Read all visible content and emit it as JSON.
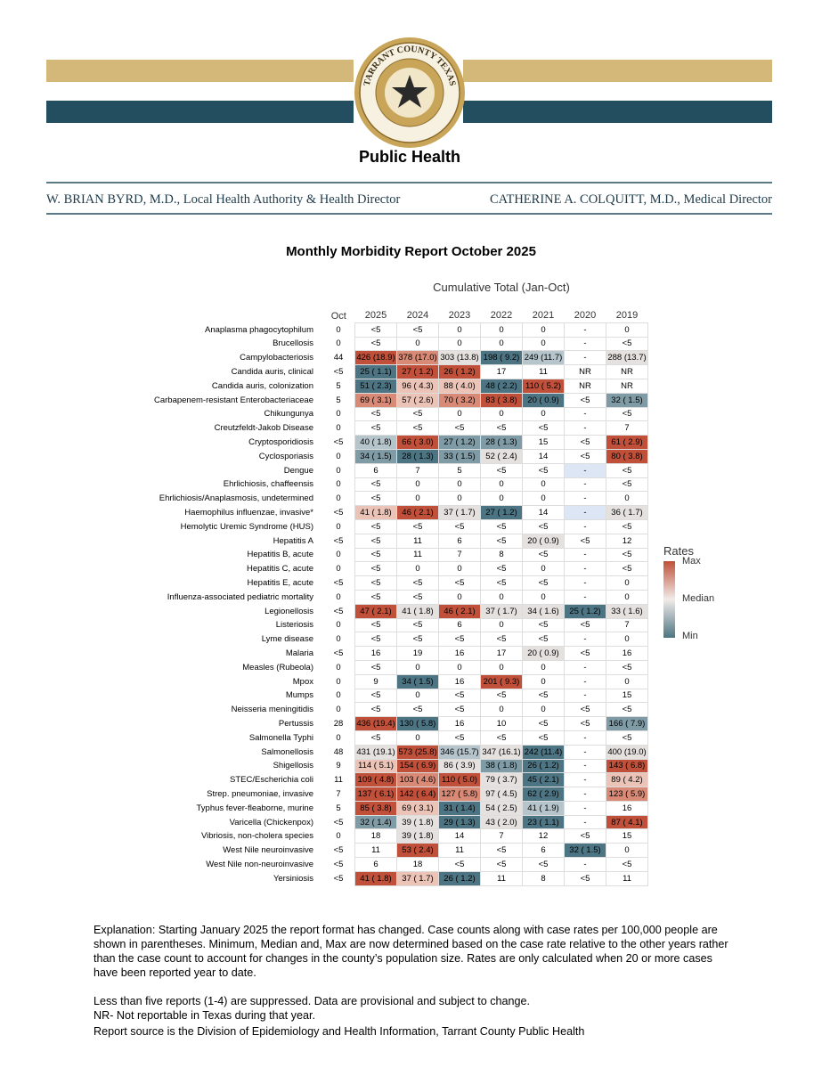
{
  "header": {
    "seal_text": "TARRANT COUNTY TEXAS",
    "organization": "Public Health",
    "left": "W. BRIAN BYRD, M.D., Local Health Authority & Health Director",
    "right": "CATHERINE A. COLQUITT, M.D., Medical Director"
  },
  "title": "Monthly Morbidity Report October 2025",
  "table": {
    "group_header": "Cumulative Total (Jan-Oct)",
    "columns": [
      "Oct",
      "2025",
      "2024",
      "2023",
      "2022",
      "2021",
      "2020",
      "2019"
    ],
    "rows": [
      {
        "name": "Anaplasma phagocytophilum",
        "values": [
          "0",
          "<5",
          "<5",
          "0",
          "0",
          "0",
          "-",
          "0"
        ]
      },
      {
        "name": "Brucellosis",
        "values": [
          "0",
          "<5",
          "0",
          "0",
          "0",
          "0",
          "-",
          "<5"
        ]
      },
      {
        "name": "Campylobacteriosis",
        "values": [
          "44",
          "426 (18.9)",
          "378 (17.0)",
          "303 (13.8)",
          "198 ( 9.2)",
          "249 (11.7)",
          "-",
          "288 (13.7)"
        ],
        "fills": [
          "#c0503a",
          "#d98a76",
          "#e4e1de",
          "#4d7483",
          "#b5c5cb",
          null,
          "#e4e1de"
        ]
      },
      {
        "name": "Candida auris, clinical",
        "values": [
          "<5",
          "25 ( 1.1)",
          "27 ( 1.2)",
          "26 ( 1.2)",
          "17",
          "11",
          "NR",
          "NR"
        ],
        "fills": [
          "#4d7483",
          "#c0503a",
          "#c0503a",
          null,
          null,
          null,
          null
        ]
      },
      {
        "name": "Candida auris, colonization",
        "values": [
          "5",
          "51 ( 2.3)",
          "96 ( 4.3)",
          "88 ( 4.0)",
          "48 ( 2.2)",
          "110 ( 5.2)",
          "NR",
          "NR"
        ],
        "fills": [
          "#4d7483",
          "#ebc3b7",
          "#ebc3b7",
          "#4d7483",
          "#c0503a",
          null,
          null
        ]
      },
      {
        "name": "Carbapenem-resistant Enterobacteriaceae",
        "values": [
          "5",
          "69 ( 3.1)",
          "57 ( 2.6)",
          "70 ( 3.2)",
          "83 ( 3.8)",
          "20 ( 0.9)",
          "<5",
          "32 ( 1.5)"
        ],
        "fills": [
          "#d98a76",
          "#ebc3b7",
          "#d98a76",
          "#c0503a",
          "#4d7483",
          null,
          "#7f9ba6"
        ]
      },
      {
        "name": "Chikungunya",
        "values": [
          "0",
          "<5",
          "<5",
          "0",
          "0",
          "0",
          "-",
          "<5"
        ]
      },
      {
        "name": "Creutzfeldt-Jakob Disease",
        "values": [
          "0",
          "<5",
          "<5",
          "<5",
          "<5",
          "<5",
          "-",
          "7"
        ]
      },
      {
        "name": "Cryptosporidiosis",
        "values": [
          "<5",
          "40 ( 1.8)",
          "66 ( 3.0)",
          "27 ( 1.2)",
          "28 ( 1.3)",
          "15",
          "<5",
          "61 ( 2.9)"
        ],
        "fills": [
          "#b5c5cb",
          "#c0503a",
          "#7f9ba6",
          "#7f9ba6",
          null,
          null,
          "#c0503a"
        ]
      },
      {
        "name": "Cyclosporiasis",
        "values": [
          "0",
          "34 ( 1.5)",
          "28 ( 1.3)",
          "33 ( 1.5)",
          "52 ( 2.4)",
          "14",
          "<5",
          "80 ( 3.8)"
        ],
        "fills": [
          "#7f9ba6",
          "#4d7483",
          "#7f9ba6",
          "#e4e1de",
          null,
          null,
          "#c0503a"
        ]
      },
      {
        "name": "Dengue",
        "values": [
          "0",
          "6",
          "7",
          "5",
          "<5",
          "<5",
          "-",
          "<5"
        ],
        "fills": [
          null,
          null,
          null,
          null,
          null,
          "#dde6f5",
          null
        ]
      },
      {
        "name": "Ehrlichiosis, chaffeensis",
        "values": [
          "0",
          "<5",
          "0",
          "0",
          "0",
          "0",
          "-",
          "<5"
        ]
      },
      {
        "name": "Ehrlichiosis/Anaplasmosis, undetermined",
        "values": [
          "0",
          "<5",
          "0",
          "0",
          "0",
          "0",
          "-",
          "0"
        ]
      },
      {
        "name": "Haemophilus influenzae, invasive*",
        "values": [
          "<5",
          "41 ( 1.8)",
          "46 ( 2.1)",
          "37 ( 1.7)",
          "27 ( 1.2)",
          "14",
          "-",
          "36 ( 1.7)"
        ],
        "fills": [
          "#ebc3b7",
          "#c0503a",
          "#e4e1de",
          "#4d7483",
          null,
          "#dde6f5",
          "#e4e1de"
        ]
      },
      {
        "name": "Hemolytic Uremic Syndrome (HUS)",
        "values": [
          "0",
          "<5",
          "<5",
          "<5",
          "<5",
          "<5",
          "-",
          "<5"
        ]
      },
      {
        "name": "Hepatitis A",
        "values": [
          "<5",
          "<5",
          "11",
          "6",
          "<5",
          "20 ( 0.9)",
          "<5",
          "12"
        ],
        "fills": [
          null,
          null,
          null,
          null,
          "#e4e1de",
          null,
          null
        ]
      },
      {
        "name": "Hepatitis B, acute",
        "values": [
          "0",
          "<5",
          "11",
          "7",
          "8",
          "<5",
          "-",
          "<5"
        ]
      },
      {
        "name": "Hepatitis C, acute",
        "values": [
          "0",
          "<5",
          "0",
          "0",
          "<5",
          "0",
          "-",
          "<5"
        ]
      },
      {
        "name": "Hepatitis E, acute",
        "values": [
          "<5",
          "<5",
          "<5",
          "<5",
          "<5",
          "<5",
          "-",
          "0"
        ]
      },
      {
        "name": "Influenza-associated pediatric mortality",
        "values": [
          "0",
          "<5",
          "<5",
          "0",
          "0",
          "0",
          "-",
          "0"
        ]
      },
      {
        "name": "Legionellosis",
        "values": [
          "<5",
          "47 ( 2.1)",
          "41 ( 1.8)",
          "46 ( 2.1)",
          "37 ( 1.7)",
          "34 ( 1.6)",
          "25 ( 1.2)",
          "33 ( 1.6)"
        ],
        "fills": [
          "#c0503a",
          "#e4e1de",
          "#c0503a",
          "#e4e1de",
          "#e4e1de",
          "#4d7483",
          "#e4e1de"
        ]
      },
      {
        "name": "Listeriosis",
        "values": [
          "0",
          "<5",
          "<5",
          "6",
          "0",
          "<5",
          "<5",
          "7"
        ]
      },
      {
        "name": "Lyme disease",
        "values": [
          "0",
          "<5",
          "<5",
          "<5",
          "<5",
          "<5",
          "-",
          "0"
        ]
      },
      {
        "name": "Malaria",
        "values": [
          "<5",
          "16",
          "19",
          "16",
          "17",
          "20 ( 0.9)",
          "<5",
          "16"
        ],
        "fills": [
          null,
          null,
          null,
          null,
          "#e4e1de",
          null,
          null
        ]
      },
      {
        "name": "Measles (Rubeola)",
        "values": [
          "0",
          "<5",
          "0",
          "0",
          "0",
          "0",
          "-",
          "<5"
        ]
      },
      {
        "name": "Mpox",
        "values": [
          "0",
          "9",
          "34 ( 1.5)",
          "16",
          "201 ( 9.3)",
          "0",
          "-",
          "0"
        ],
        "fills": [
          null,
          "#4d7483",
          null,
          "#c0503a",
          null,
          null,
          null
        ]
      },
      {
        "name": "Mumps",
        "values": [
          "0",
          "<5",
          "0",
          "<5",
          "<5",
          "<5",
          "-",
          "15"
        ]
      },
      {
        "name": "Neisseria meningitidis",
        "values": [
          "0",
          "<5",
          "<5",
          "<5",
          "0",
          "0",
          "<5",
          "<5"
        ]
      },
      {
        "name": "Pertussis",
        "values": [
          "28",
          "436 (19.4)",
          "130 ( 5.8)",
          "16",
          "10",
          "<5",
          "<5",
          "166 ( 7.9)"
        ],
        "fills": [
          "#c0503a",
          "#4d7483",
          null,
          null,
          null,
          null,
          "#7f9ba6"
        ]
      },
      {
        "name": "Salmonella Typhi",
        "values": [
          "0",
          "<5",
          "0",
          "<5",
          "<5",
          "<5",
          "-",
          "<5"
        ]
      },
      {
        "name": "Salmonellosis",
        "values": [
          "48",
          "431 (19.1)",
          "573 (25.8)",
          "346 (15.7)",
          "347 (16.1)",
          "242 (11.4)",
          "-",
          "400 (19.0)"
        ],
        "fills": [
          "#e4e1de",
          "#c0503a",
          "#b5c5cb",
          "#e4e1de",
          "#4d7483",
          null,
          "#e4e1de"
        ]
      },
      {
        "name": "Shigellosis",
        "values": [
          "9",
          "114 ( 5.1)",
          "154 ( 6.9)",
          "86 ( 3.9)",
          "38 ( 1.8)",
          "26 ( 1.2)",
          "-",
          "143 ( 6.8)"
        ],
        "fills": [
          "#ebc3b7",
          "#c0503a",
          "#e4e1de",
          "#7f9ba6",
          "#4d7483",
          null,
          "#c0503a"
        ]
      },
      {
        "name": "STEC/Escherichia coli",
        "values": [
          "11",
          "109 ( 4.8)",
          "103 ( 4.6)",
          "110 ( 5.0)",
          "79 ( 3.7)",
          "45 ( 2.1)",
          "-",
          "89 ( 4.2)"
        ],
        "fills": [
          "#c0503a",
          "#d98a76",
          "#c0503a",
          "#e4e1de",
          "#4d7483",
          null,
          "#ebc3b7"
        ]
      },
      {
        "name": "Strep. pneumoniae, invasive",
        "values": [
          "7",
          "137 ( 6.1)",
          "142 ( 6.4)",
          "127 ( 5.8)",
          "97 ( 4.5)",
          "62 ( 2.9)",
          "-",
          "123 ( 5.9)"
        ],
        "fills": [
          "#c0503a",
          "#c0503a",
          "#d98a76",
          "#e4e1de",
          "#4d7483",
          null,
          "#d98a76"
        ]
      },
      {
        "name": "Typhus fever-fleaborne, murine",
        "values": [
          "5",
          "85 ( 3.8)",
          "69 ( 3.1)",
          "31 ( 1.4)",
          "54 ( 2.5)",
          "41 ( 1.9)",
          "-",
          "16"
        ],
        "fills": [
          "#c0503a",
          "#ebc3b7",
          "#4d7483",
          "#e4e1de",
          "#b5c5cb",
          null,
          null
        ]
      },
      {
        "name": "Varicella (Chickenpox)",
        "values": [
          "<5",
          "32 ( 1.4)",
          "39 ( 1.8)",
          "29 ( 1.3)",
          "43 ( 2.0)",
          "23 ( 1.1)",
          "-",
          "87 ( 4.1)"
        ],
        "fills": [
          "#7f9ba6",
          "#e4e1de",
          "#4d7483",
          "#e4e1de",
          "#4d7483",
          null,
          "#c0503a"
        ]
      },
      {
        "name": "Vibriosis, non-cholera species",
        "values": [
          "0",
          "18",
          "39 ( 1.8)",
          "14",
          "7",
          "12",
          "<5",
          "15"
        ],
        "fills": [
          null,
          "#e4e1de",
          null,
          null,
          null,
          null,
          null
        ]
      },
      {
        "name": "West Nile neuroinvasive",
        "values": [
          "<5",
          "11",
          "53 ( 2.4)",
          "11",
          "<5",
          "6",
          "32 ( 1.5)",
          "0"
        ],
        "fills": [
          null,
          "#c0503a",
          null,
          null,
          null,
          "#4d7483",
          null
        ]
      },
      {
        "name": "West Nile non-neuroinvasive",
        "values": [
          "<5",
          "6",
          "18",
          "<5",
          "<5",
          "<5",
          "-",
          "<5"
        ]
      },
      {
        "name": "Yersiniosis",
        "values": [
          "<5",
          "41 ( 1.8)",
          "37 ( 1.7)",
          "26 ( 1.2)",
          "11",
          "8",
          "<5",
          "11"
        ],
        "fills": [
          "#c0503a",
          "#ebc3b7",
          "#4d7483",
          null,
          null,
          null,
          null
        ]
      }
    ]
  },
  "legend": {
    "title": "Rates",
    "labels": [
      "Max",
      "Median",
      "Min"
    ]
  },
  "notes": [
    "Explanation: Starting January 2025 the report format has changed. Case counts along with case rates per 100,000 people are shown in parentheses. Minimum, Median and, Max are now determined based on the case rate relative to the other years rather than the case count to account for changes in the county’s population size. Rates are only calculated when 20 or more cases have been reported year to date.",
    "Less than five reports (1-4) are suppressed. Data are provisional and subject to change.",
    "NR- Not reportable in Texas during that year.",
    "Report source is the Division of Epidemiology and Health Information, Tarrant County Public Health"
  ]
}
